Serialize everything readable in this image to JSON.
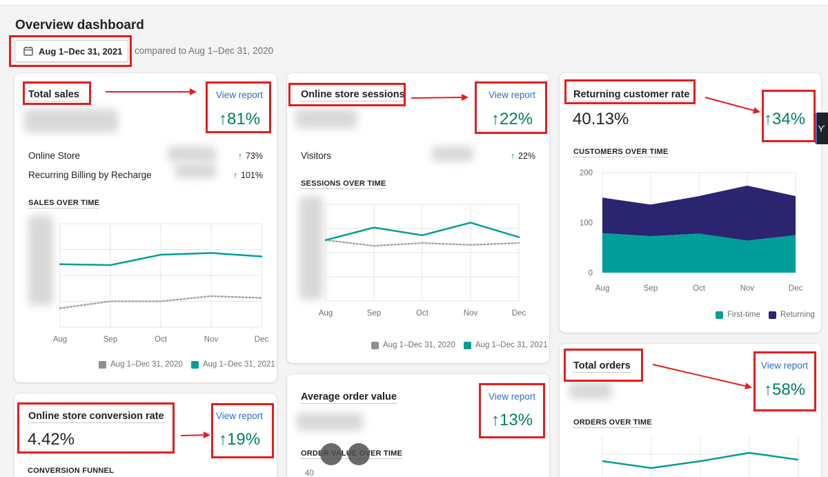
{
  "page": {
    "title": "Overview dashboard",
    "date_range": "Aug 1–Dec 31, 2021",
    "compare_text": "compared to Aug 1–Dec 31, 2020"
  },
  "colors": {
    "teal": "#009e9a",
    "navy": "#2b246e",
    "green": "#008060",
    "link": "#2c6ecb",
    "highlight": "#e51c1c"
  },
  "total_sales": {
    "title": "Total sales",
    "view_report": "View report",
    "change": "↑81%",
    "rows": [
      {
        "label": "Online Store",
        "change": "73%"
      },
      {
        "label": "Recurring Billing by Recharge",
        "change": "101%"
      }
    ],
    "chart_label": "SALES OVER TIME"
  },
  "sessions": {
    "title": "Online store sessions",
    "view_report": "View report",
    "change": "↑22%",
    "rows": [
      {
        "label": "Visitors",
        "change": "22%"
      }
    ],
    "chart_label": "SESSIONS OVER TIME"
  },
  "returning": {
    "title": "Returning customer rate",
    "change": "↑34%",
    "value": "40.13%",
    "chart_label": "CUSTOMERS OVER TIME"
  },
  "conversion": {
    "title": "Online store conversion rate",
    "view_report": "View report",
    "change": "↑19%",
    "value": "4.42%",
    "chart_label": "CONVERSION FUNNEL"
  },
  "aov": {
    "title": "Average order value",
    "view_report": "View report",
    "change": "↑13%",
    "chart_label": "ORDER VALUE OVER TIME",
    "first_tick": "40"
  },
  "orders": {
    "title": "Total orders",
    "view_report": "View report",
    "change": "↑58%",
    "chart_label": "ORDERS OVER TIME"
  },
  "legend": {
    "previous": "Aug 1–Dec 31, 2020",
    "current": "Aug 1–Dec 31, 2021",
    "first_time": "First-time",
    "returning": "Returning"
  },
  "side_tab_icon": "signal-icon",
  "chart_data": [
    {
      "type": "line",
      "title": "SALES OVER TIME",
      "categories": [
        "Aug",
        "Sep",
        "Oct",
        "Nov",
        "Dec"
      ],
      "series": [
        {
          "name": "Aug 1–Dec 31, 2021",
          "values": [
            0.73,
            0.72,
            0.84,
            0.86,
            0.82
          ]
        },
        {
          "name": "Aug 1–Dec 31, 2020",
          "values": [
            0.22,
            0.3,
            0.3,
            0.36,
            0.34
          ]
        }
      ],
      "ylim": [
        0,
        1.2
      ],
      "note": "y tick labels obscured in original"
    },
    {
      "type": "line",
      "title": "SESSIONS OVER TIME",
      "categories": [
        "Aug",
        "Sep",
        "Oct",
        "Nov",
        "Dec"
      ],
      "series": [
        {
          "name": "Aug 1–Dec 31, 2021",
          "values": [
            0.63,
            0.76,
            0.68,
            0.81,
            0.66
          ]
        },
        {
          "name": "Aug 1–Dec 31, 2020",
          "values": [
            0.63,
            0.57,
            0.6,
            0.58,
            0.6
          ]
        }
      ],
      "ylim": [
        0,
        1
      ],
      "note": "y tick labels obscured in original"
    },
    {
      "type": "area",
      "title": "CUSTOMERS OVER TIME",
      "categories": [
        "Aug",
        "Sep",
        "Oct",
        "Nov",
        "Dec"
      ],
      "yticks": [
        0,
        100,
        200
      ],
      "ylim": [
        0,
        200
      ],
      "series": [
        {
          "name": "First-time",
          "values": [
            79,
            73,
            78,
            64,
            75
          ]
        },
        {
          "name": "Returning",
          "values": [
            71,
            63,
            75,
            110,
            78
          ]
        }
      ],
      "stacked": true
    },
    {
      "type": "line",
      "title": "ORDERS OVER TIME",
      "categories": [
        "Aug",
        "Sep",
        "Oct",
        "Nov",
        "Dec"
      ],
      "series": [
        {
          "name": "Aug 1–Dec 31, 2021",
          "values": [
            0.55,
            0.3,
            0.55,
            0.85,
            0.6
          ]
        }
      ],
      "note": "chart cropped at bottom of screenshot"
    }
  ]
}
